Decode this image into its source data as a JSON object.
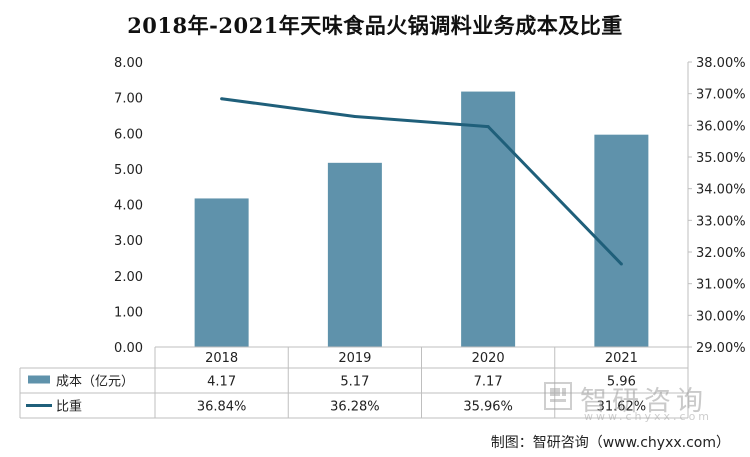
{
  "chart_data": {
    "type": "bar+line",
    "title": "2018年-2021年天味食品火锅调料业务成本及比重",
    "categories": [
      "2018",
      "2019",
      "2020",
      "2021"
    ],
    "series": [
      {
        "name": "成本（亿元）",
        "type": "bar",
        "axis": "left",
        "values": [
          4.17,
          5.17,
          7.17,
          5.96
        ],
        "labels": [
          "4.17",
          "5.17",
          "7.17",
          "5.96"
        ],
        "color": "#5f92ab"
      },
      {
        "name": "比重",
        "type": "line",
        "axis": "right",
        "values": [
          36.84,
          36.28,
          35.96,
          31.62
        ],
        "labels": [
          "36.84%",
          "36.28%",
          "35.96%",
          "31.62%"
        ],
        "color": "#1f5f7a"
      }
    ],
    "y_left": {
      "range": [
        0,
        8
      ],
      "ticks": [
        "0.00",
        "1.00",
        "2.00",
        "3.00",
        "4.00",
        "5.00",
        "6.00",
        "7.00",
        "8.00"
      ]
    },
    "y_right": {
      "range": [
        29,
        38
      ],
      "ticks": [
        "29.00%",
        "30.00%",
        "31.00%",
        "32.00%",
        "33.00%",
        "34.00%",
        "35.00%",
        "36.00%",
        "37.00%",
        "38.00%"
      ]
    },
    "data_table": true,
    "gridlines": false
  },
  "watermark": {
    "name": "智研咨询",
    "url": "www.chyxx.com"
  },
  "source": "制图：智研咨询（www.chyxx.com）"
}
